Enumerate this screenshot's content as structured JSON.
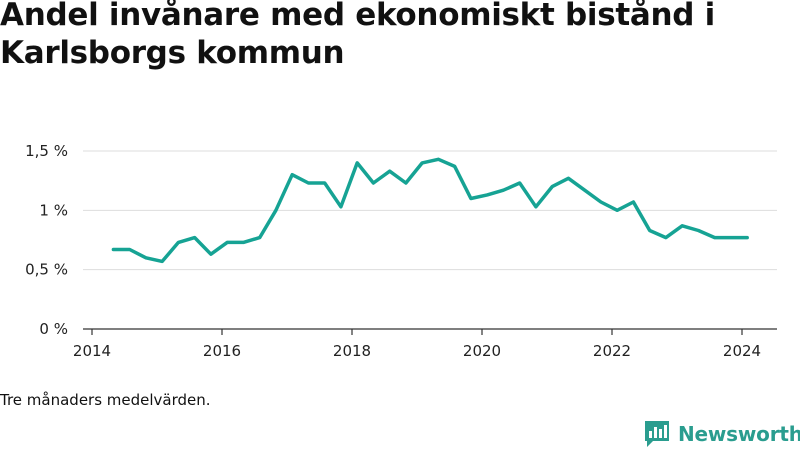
{
  "title": "Andel invånare med ekonomiskt bistånd i Karlsborgs kommun",
  "footnote": "Tre månaders medelvärden.",
  "brand": "Newsworthy",
  "colors": {
    "line": "#16a394",
    "grid": "#dddddd",
    "axis": "#333333",
    "brand": "#2a9d8f"
  },
  "chart_data": {
    "type": "line",
    "title": "Andel invånare med ekonomiskt bistånd i Karlsborgs kommun",
    "xlabel": "",
    "ylabel": "",
    "xlim": [
      2014,
      2024.5
    ],
    "ylim": [
      0,
      1.5
    ],
    "x_ticks": [
      2014,
      2016,
      2018,
      2020,
      2022,
      2024
    ],
    "x_tick_labels": [
      "2014",
      "2016",
      "2018",
      "2020",
      "2022",
      "2024"
    ],
    "y_ticks": [
      0,
      0.5,
      1,
      1.5
    ],
    "y_tick_labels": [
      "0 %",
      "0,5 %",
      "1 %",
      "1,5 %"
    ],
    "grid": true,
    "series": [
      {
        "x": [
          2014.33,
          2014.58,
          2014.83,
          2015.08,
          2015.33,
          2015.58,
          2015.83,
          2016.08,
          2016.33,
          2016.58,
          2016.83,
          2017.08,
          2017.33,
          2017.58,
          2017.83,
          2018.08,
          2018.33,
          2018.58,
          2018.83,
          2019.08,
          2019.33,
          2019.58,
          2019.83,
          2020.08,
          2020.33,
          2020.58,
          2020.83,
          2021.08,
          2021.33,
          2021.58,
          2021.83,
          2022.08,
          2022.33,
          2022.58,
          2022.83,
          2023.08,
          2023.33,
          2023.58,
          2023.83,
          2024.08
        ],
        "values": [
          0.67,
          0.67,
          0.6,
          0.57,
          0.73,
          0.77,
          0.63,
          0.73,
          0.73,
          0.77,
          1.0,
          1.3,
          1.23,
          1.23,
          1.03,
          1.4,
          1.23,
          1.33,
          1.23,
          1.4,
          1.43,
          1.37,
          1.1,
          1.13,
          1.17,
          1.23,
          1.03,
          1.2,
          1.27,
          1.17,
          1.07,
          1.0,
          1.07,
          0.83,
          0.77,
          0.87,
          0.83,
          0.77,
          0.77,
          0.77
        ]
      }
    ]
  }
}
